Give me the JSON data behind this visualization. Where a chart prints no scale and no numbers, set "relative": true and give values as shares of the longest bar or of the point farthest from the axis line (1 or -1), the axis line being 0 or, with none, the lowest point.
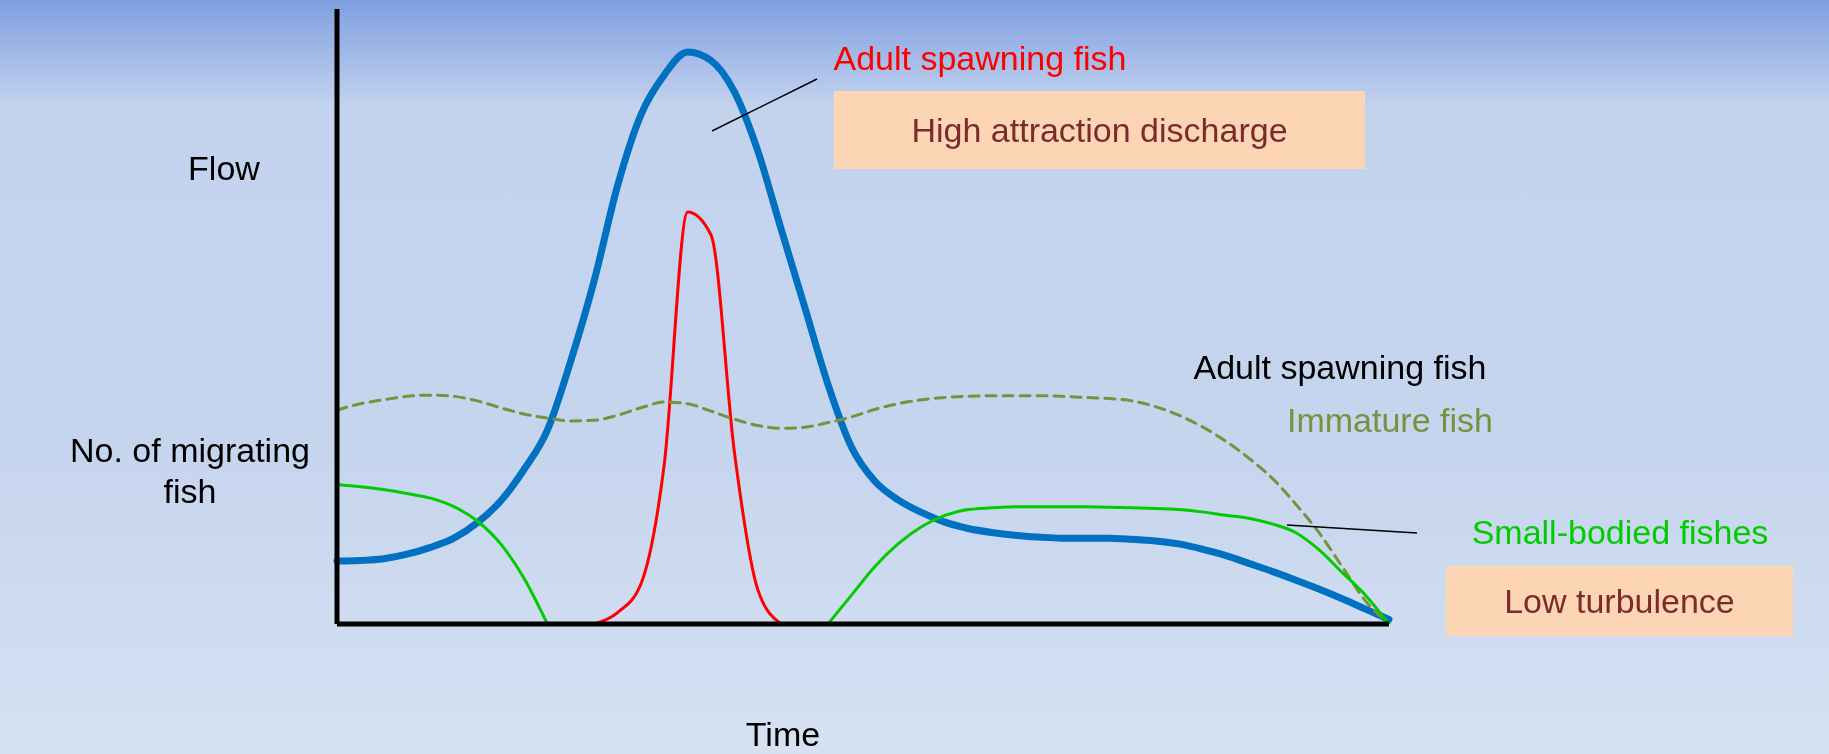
{
  "chart_data": {
    "type": "line",
    "relative": true,
    "ylabel": "Flow",
    "xlabel": "Time",
    "marker": "none",
    "categories": [
      null,
      null,
      null,
      null,
      null,
      null,
      null,
      null,
      null,
      null,
      null,
      null,
      null,
      null,
      null,
      null,
      null,
      null,
      null,
      null,
      null,
      null,
      null,
      null,
      null,
      null,
      null,
      null,
      null,
      null,
      null,
      null,
      null,
      null,
      null,
      null,
      null,
      null,
      null,
      null,
      null,
      null,
      null,
      null,
      null,
      null
    ],
    "series": [
      {
        "color": "#0070c0",
        "values": [
          0.11,
          0.111,
          0.114,
          0.122,
          0.134,
          0.15,
          0.177,
          0.215,
          0.27,
          0.339,
          0.46,
          0.6,
          0.766,
          0.89,
          0.96,
          1,
          0.985,
          0.93,
          0.827,
          0.69,
          0.555,
          0.419,
          0.31,
          0.25,
          0.217,
          0.195,
          0.178,
          0.167,
          0.16,
          0.155,
          0.152,
          0.15,
          0.15,
          0.15,
          0.148,
          0.145,
          0.14,
          0.131,
          0.12,
          0.106,
          0.092,
          0.077,
          0.061,
          0.044,
          0.026,
          0.008
        ]
      },
      {
        "name": "Adult spawning fish",
        "color": "#ff0000",
        "values": [
          null,
          null,
          null,
          null,
          null,
          null,
          null,
          null,
          null,
          null,
          null,
          0,
          0.02,
          0.07,
          0.28,
          0.72,
          0.68,
          0.3,
          0.06,
          0,
          null,
          null,
          null,
          null,
          null,
          null,
          null,
          null,
          null,
          null,
          null,
          null,
          null,
          null,
          null,
          null,
          null,
          null,
          null,
          null,
          null,
          null,
          null,
          null,
          null,
          null
        ]
      },
      {
        "name": "Immature fish",
        "color": "#76923c",
        "line_style": "dashed",
        "values": [
          0.374,
          0.385,
          0.392,
          0.398,
          0.4,
          0.398,
          0.39,
          0.378,
          0.367,
          0.36,
          0.355,
          0.356,
          0.365,
          0.378,
          0.388,
          0.385,
          0.372,
          0.358,
          0.347,
          0.342,
          0.344,
          0.352,
          0.362,
          0.375,
          0.385,
          0.392,
          0.396,
          0.398,
          0.399,
          0.399,
          0.399,
          0.398,
          0.396,
          0.394,
          0.39,
          0.38,
          0.365,
          0.345,
          0.32,
          0.29,
          0.255,
          0.21,
          0.16,
          0.1,
          0.04,
          0
        ]
      },
      {
        "name": "Small-bodied fishes",
        "color": "#00cc00",
        "values": [
          0.244,
          0.24,
          0.235,
          0.228,
          0.22,
          0.205,
          0.18,
          0.14,
          0.08,
          0,
          null,
          null,
          null,
          null,
          null,
          null,
          null,
          null,
          null,
          null,
          null,
          0,
          0.05,
          0.1,
          0.14,
          0.17,
          0.19,
          0.2,
          0.203,
          0.205,
          0.205,
          0.205,
          0.205,
          0.204,
          0.203,
          0.202,
          0.2,
          0.196,
          0.19,
          0.185,
          0.175,
          0.16,
          0.13,
          0.09,
          0.05,
          0
        ]
      }
    ],
    "annotations": [
      "No. of migrating fish",
      "High attraction discharge",
      "Adult spawning fish",
      "Low turbulence"
    ]
  }
}
